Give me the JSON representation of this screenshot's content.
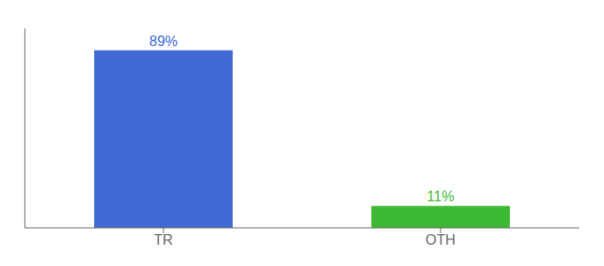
{
  "chart_data": {
    "type": "bar",
    "categories": [
      "TR",
      "OTH"
    ],
    "values": [
      89,
      11
    ],
    "value_labels": [
      "89%",
      "11%"
    ],
    "colors": [
      "#4169d4",
      "#3cb832"
    ],
    "ylim": [
      0,
      100
    ],
    "data_labels": true,
    "tick_labels": "x"
  }
}
